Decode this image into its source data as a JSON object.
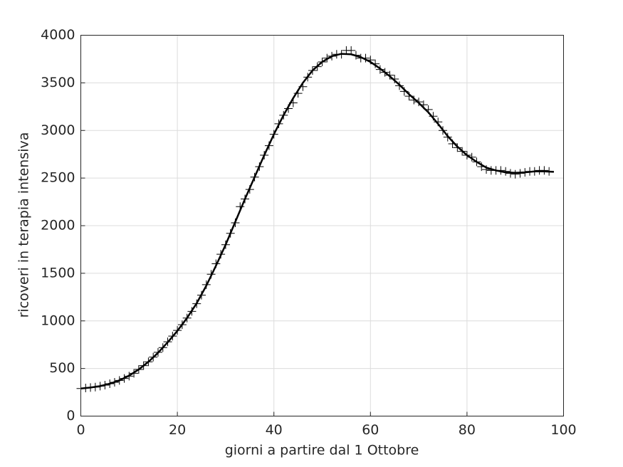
{
  "chart_data": {
    "type": "line",
    "xlabel": "giorni a partire dal 1 Ottobre",
    "ylabel": "ricoveri in terapia intensiva",
    "xlim": [
      0,
      100
    ],
    "ylim": [
      0,
      4000
    ],
    "xticks": [
      0,
      20,
      40,
      60,
      80,
      100
    ],
    "yticks": [
      0,
      500,
      1000,
      1500,
      2000,
      2500,
      3000,
      3500,
      4000
    ],
    "grid": true,
    "series": [
      {
        "type": "scatter",
        "marker": "+",
        "color": "#000000",
        "x": [
          0,
          1,
          2,
          3,
          4,
          5,
          6,
          7,
          8,
          9,
          10,
          11,
          12,
          13,
          14,
          15,
          16,
          17,
          18,
          19,
          20,
          21,
          22,
          23,
          24,
          25,
          26,
          27,
          28,
          29,
          30,
          31,
          32,
          33,
          34,
          35,
          36,
          37,
          38,
          39,
          40,
          41,
          42,
          43,
          44,
          45,
          46,
          47,
          48,
          49,
          50,
          51,
          52,
          53,
          54,
          55,
          56,
          57,
          58,
          59,
          60,
          61,
          62,
          63,
          64,
          65,
          66,
          67,
          68,
          69,
          70,
          71,
          72,
          73,
          74,
          75,
          76,
          77,
          78,
          79,
          80,
          81,
          82,
          83,
          84,
          85,
          86,
          87,
          88,
          89,
          90,
          91,
          92,
          93,
          94,
          95,
          96,
          97
        ],
        "values": [
          290,
          295,
          300,
          305,
          315,
          325,
          340,
          355,
          375,
          395,
          420,
          450,
          490,
          530,
          570,
          620,
          670,
          720,
          780,
          840,
          900,
          960,
          1030,
          1100,
          1180,
          1270,
          1380,
          1490,
          1600,
          1700,
          1800,
          1920,
          2030,
          2200,
          2280,
          2380,
          2510,
          2620,
          2740,
          2840,
          2960,
          3070,
          3160,
          3230,
          3290,
          3390,
          3460,
          3560,
          3630,
          3670,
          3720,
          3760,
          3780,
          3800,
          3800,
          3840,
          3840,
          3790,
          3760,
          3760,
          3740,
          3700,
          3640,
          3610,
          3580,
          3540,
          3470,
          3410,
          3360,
          3320,
          3300,
          3270,
          3220,
          3150,
          3090,
          3000,
          2930,
          2860,
          2820,
          2780,
          2740,
          2720,
          2670,
          2620,
          2590,
          2580,
          2580,
          2580,
          2570,
          2550,
          2540,
          2550,
          2560,
          2570,
          2570,
          2580,
          2580,
          2570
        ]
      },
      {
        "type": "line",
        "color": "#000000",
        "x": [
          0,
          2,
          4,
          6,
          8,
          10,
          12,
          14,
          16,
          18,
          20,
          22,
          24,
          26,
          28,
          30,
          32,
          34,
          36,
          38,
          40,
          42,
          44,
          46,
          48,
          50,
          52,
          54,
          56,
          58,
          60,
          62,
          64,
          66,
          68,
          70,
          72,
          74,
          76,
          78,
          80,
          82,
          84,
          86,
          88,
          90,
          92,
          94,
          96,
          98
        ],
        "values": [
          290,
          300,
          315,
          340,
          375,
          425,
          490,
          570,
          665,
          775,
          895,
          1030,
          1185,
          1370,
          1580,
          1800,
          2040,
          2280,
          2510,
          2740,
          2960,
          3160,
          3340,
          3500,
          3630,
          3720,
          3780,
          3805,
          3800,
          3770,
          3720,
          3650,
          3570,
          3480,
          3380,
          3290,
          3190,
          3070,
          2940,
          2830,
          2740,
          2670,
          2610,
          2580,
          2560,
          2555,
          2560,
          2570,
          2570,
          2565
        ]
      }
    ]
  }
}
